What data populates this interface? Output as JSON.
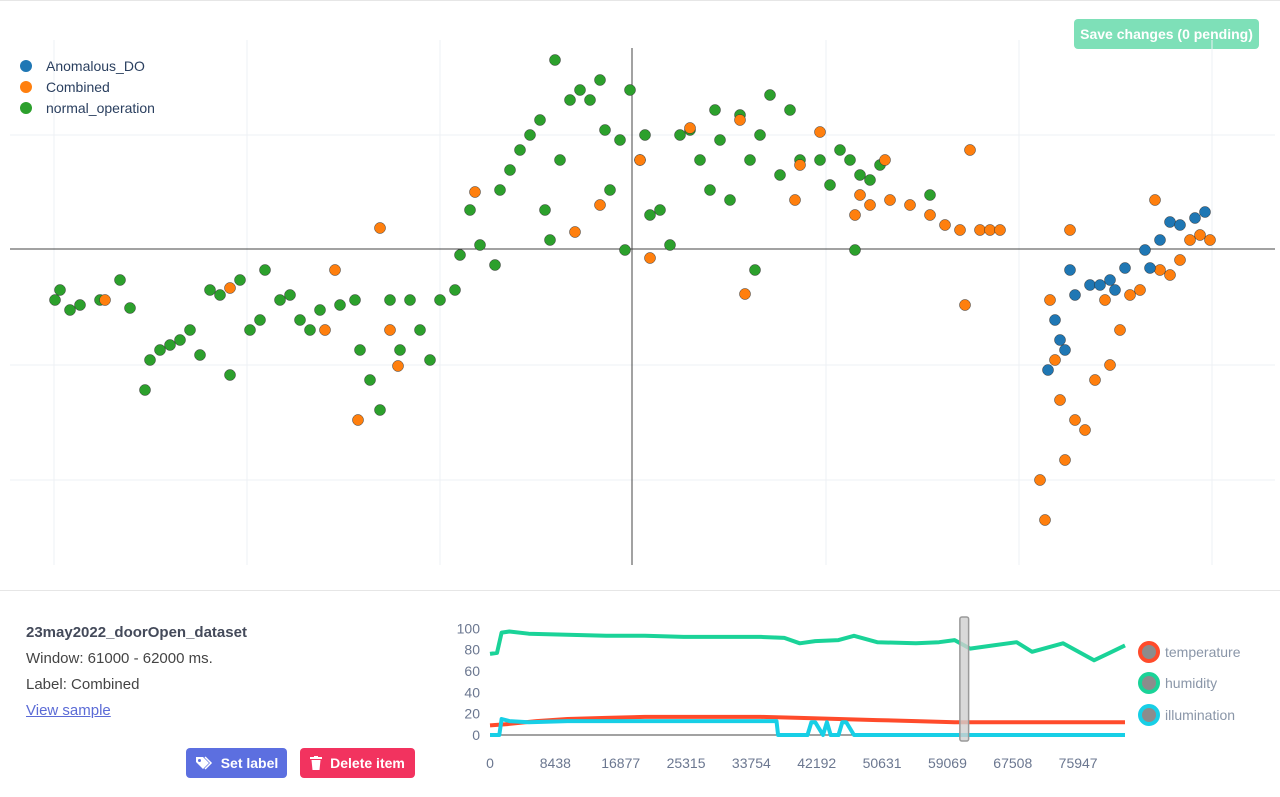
{
  "header": {
    "save_label": "Save changes (0 pending)"
  },
  "scatter": {
    "legend": [
      {
        "name": "Anomalous_DO",
        "color": "#1f77b4"
      },
      {
        "name": "Combined",
        "color": "#ff7f0e"
      },
      {
        "name": "normal_operation",
        "color": "#2ca02c"
      }
    ]
  },
  "sample": {
    "title": "23may2022_doorOpen_dataset",
    "window": "Window: 61000 - 62000 ms.",
    "label": "Label: Combined",
    "view_link": "View sample"
  },
  "actions": {
    "set_label": "Set label",
    "delete_item": "Delete item"
  },
  "chart_data": [
    {
      "type": "scatter",
      "title": "",
      "xlabel": "",
      "ylabel": "",
      "grid": true,
      "legend_position": "top-left",
      "series": [
        {
          "name": "normal_operation",
          "color": "#2ca02c",
          "points": [
            [
              55,
              300
            ],
            [
              60,
              290
            ],
            [
              70,
              310
            ],
            [
              80,
              305
            ],
            [
              100,
              300
            ],
            [
              120,
              280
            ],
            [
              130,
              308
            ],
            [
              145,
              390
            ],
            [
              150,
              360
            ],
            [
              160,
              350
            ],
            [
              170,
              345
            ],
            [
              180,
              340
            ],
            [
              190,
              330
            ],
            [
              200,
              355
            ],
            [
              210,
              290
            ],
            [
              220,
              295
            ],
            [
              230,
              375
            ],
            [
              240,
              280
            ],
            [
              250,
              330
            ],
            [
              260,
              320
            ],
            [
              265,
              270
            ],
            [
              280,
              300
            ],
            [
              290,
              295
            ],
            [
              300,
              320
            ],
            [
              310,
              330
            ],
            [
              320,
              310
            ],
            [
              340,
              305
            ],
            [
              355,
              300
            ],
            [
              360,
              350
            ],
            [
              370,
              380
            ],
            [
              380,
              410
            ],
            [
              390,
              300
            ],
            [
              400,
              350
            ],
            [
              410,
              300
            ],
            [
              420,
              330
            ],
            [
              430,
              360
            ],
            [
              440,
              300
            ],
            [
              455,
              290
            ],
            [
              460,
              255
            ],
            [
              470,
              210
            ],
            [
              480,
              245
            ],
            [
              495,
              265
            ],
            [
              500,
              190
            ],
            [
              510,
              170
            ],
            [
              520,
              150
            ],
            [
              530,
              135
            ],
            [
              540,
              120
            ],
            [
              545,
              210
            ],
            [
              550,
              240
            ],
            [
              555,
              60
            ],
            [
              560,
              160
            ],
            [
              570,
              100
            ],
            [
              580,
              90
            ],
            [
              590,
              100
            ],
            [
              600,
              80
            ],
            [
              605,
              130
            ],
            [
              610,
              190
            ],
            [
              620,
              140
            ],
            [
              625,
              250
            ],
            [
              630,
              90
            ],
            [
              640,
              160
            ],
            [
              645,
              135
            ],
            [
              650,
              215
            ],
            [
              660,
              210
            ],
            [
              670,
              245
            ],
            [
              680,
              135
            ],
            [
              690,
              130
            ],
            [
              700,
              160
            ],
            [
              710,
              190
            ],
            [
              715,
              110
            ],
            [
              720,
              140
            ],
            [
              730,
              200
            ],
            [
              740,
              115
            ],
            [
              750,
              160
            ],
            [
              755,
              270
            ],
            [
              760,
              135
            ],
            [
              770,
              95
            ],
            [
              780,
              175
            ],
            [
              790,
              110
            ],
            [
              800,
              160
            ],
            [
              820,
              160
            ],
            [
              830,
              185
            ],
            [
              840,
              150
            ],
            [
              850,
              160
            ],
            [
              855,
              250
            ],
            [
              860,
              175
            ],
            [
              870,
              180
            ],
            [
              880,
              165
            ],
            [
              930,
              195
            ]
          ]
        },
        {
          "name": "Combined",
          "color": "#ff7f0e",
          "points": [
            [
              105,
              300
            ],
            [
              230,
              288
            ],
            [
              335,
              270
            ],
            [
              325,
              330
            ],
            [
              380,
              228
            ],
            [
              390,
              330
            ],
            [
              398,
              366
            ],
            [
              358,
              420
            ],
            [
              475,
              192
            ],
            [
              575,
              232
            ],
            [
              600,
              205
            ],
            [
              640,
              160
            ],
            [
              650,
              258
            ],
            [
              690,
              128
            ],
            [
              740,
              120
            ],
            [
              745,
              294
            ],
            [
              795,
              200
            ],
            [
              800,
              165
            ],
            [
              820,
              132
            ],
            [
              855,
              215
            ],
            [
              860,
              195
            ],
            [
              870,
              205
            ],
            [
              885,
              160
            ],
            [
              890,
              200
            ],
            [
              910,
              205
            ],
            [
              930,
              215
            ],
            [
              945,
              225
            ],
            [
              960,
              230
            ],
            [
              970,
              150
            ],
            [
              980,
              230
            ],
            [
              990,
              230
            ],
            [
              1000,
              230
            ],
            [
              965,
              305
            ],
            [
              1040,
              480
            ],
            [
              1045,
              520
            ],
            [
              1050,
              300
            ],
            [
              1055,
              360
            ],
            [
              1060,
              400
            ],
            [
              1065,
              460
            ],
            [
              1070,
              230
            ],
            [
              1075,
              420
            ],
            [
              1085,
              430
            ],
            [
              1095,
              380
            ],
            [
              1105,
              300
            ],
            [
              1110,
              365
            ],
            [
              1120,
              330
            ],
            [
              1130,
              295
            ],
            [
              1140,
              290
            ],
            [
              1155,
              200
            ],
            [
              1160,
              270
            ],
            [
              1170,
              275
            ],
            [
              1180,
              260
            ],
            [
              1190,
              240
            ],
            [
              1200,
              235
            ],
            [
              1210,
              240
            ]
          ]
        },
        {
          "name": "Anomalous_DO",
          "color": "#1f77b4",
          "points": [
            [
              1048,
              370
            ],
            [
              1055,
              320
            ],
            [
              1060,
              340
            ],
            [
              1065,
              350
            ],
            [
              1070,
              270
            ],
            [
              1075,
              295
            ],
            [
              1090,
              285
            ],
            [
              1100,
              285
            ],
            [
              1110,
              280
            ],
            [
              1115,
              290
            ],
            [
              1125,
              268
            ],
            [
              1145,
              250
            ],
            [
              1150,
              268
            ],
            [
              1160,
              240
            ],
            [
              1170,
              222
            ],
            [
              1180,
              225
            ],
            [
              1195,
              218
            ],
            [
              1205,
              212
            ]
          ]
        }
      ]
    },
    {
      "type": "line",
      "title": "",
      "xlabel": "",
      "ylabel": "",
      "x_ticks": [
        "0",
        "8438",
        "16877",
        "25315",
        "33754",
        "42192",
        "50631",
        "59069",
        "67508",
        "75947"
      ],
      "y_ticks": [
        "0",
        "20",
        "40",
        "60",
        "80",
        "100"
      ],
      "ylim": [
        0,
        105
      ],
      "xlim": [
        0,
        82000
      ],
      "highlight_window": [
        61000,
        62000
      ],
      "legend_position": "right",
      "series": [
        {
          "name": "temperature",
          "color": "#ff4b2b",
          "x": [
            0,
            2000,
            6000,
            10000,
            15000,
            20000,
            25000,
            30000,
            35000,
            40000,
            45000,
            50000,
            55000,
            60000,
            62000,
            65000,
            70000,
            75000,
            80000,
            82000
          ],
          "y": [
            9,
            10,
            13,
            15,
            16,
            17,
            17,
            17,
            17,
            16,
            15,
            14,
            13,
            12,
            12,
            12,
            12,
            12,
            12,
            12
          ]
        },
        {
          "name": "humidity",
          "color": "#1ad398",
          "x": [
            0,
            900,
            1500,
            2500,
            5000,
            10000,
            15000,
            20000,
            25000,
            30000,
            35000,
            38000,
            40000,
            42000,
            45000,
            47000,
            50000,
            55000,
            58000,
            60000,
            62000,
            65000,
            68000,
            70000,
            74000,
            78000,
            80000,
            82000
          ],
          "y": [
            76,
            77,
            96,
            97,
            95,
            94,
            93,
            93,
            92,
            92,
            92,
            91,
            86,
            88,
            89,
            93,
            87,
            86,
            87,
            89,
            81,
            84,
            87,
            78,
            86,
            70,
            77,
            84
          ]
        },
        {
          "name": "illumination",
          "color": "#17cfe6",
          "x": [
            0,
            1200,
            1500,
            2500,
            5000,
            10000,
            20000,
            30000,
            37000,
            37200,
            41000,
            41500,
            42000,
            43000,
            43500,
            44000,
            45000,
            45500,
            46000,
            47000,
            48000,
            80000,
            82000
          ],
          "y": [
            0,
            0,
            15,
            13,
            12,
            13,
            13,
            13,
            13,
            0,
            0,
            12,
            12,
            0,
            12,
            0,
            0,
            12,
            12,
            0,
            0,
            0,
            0
          ]
        }
      ]
    }
  ]
}
